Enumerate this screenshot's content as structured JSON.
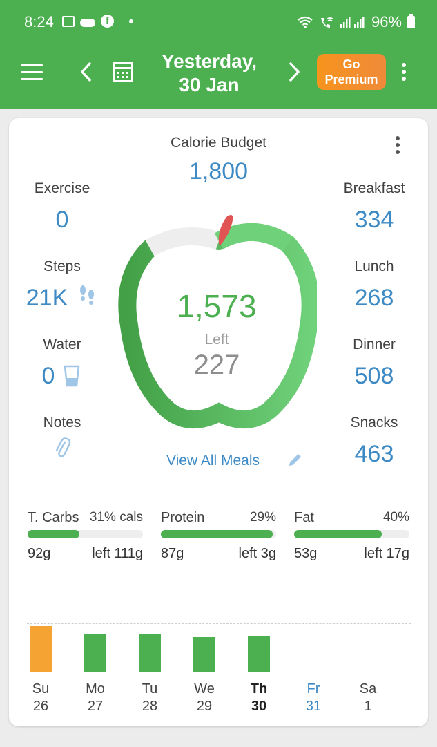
{
  "status_bar": {
    "time": "8:24",
    "battery": "96%"
  },
  "header": {
    "date_line1": "Yesterday,",
    "date_line2": "30 Jan",
    "premium_line1": "Go",
    "premium_line2": "Premium",
    "colors": {
      "bar": "#4caf50",
      "premium": "#f7941d"
    }
  },
  "summary": {
    "budget_label": "Calorie Budget",
    "budget_value": "1,800",
    "consumed": "1,573",
    "left_label": "Left",
    "left_value": "227",
    "view_all": "View All Meals",
    "left_stats": [
      {
        "label": "Exercise",
        "value": "0",
        "icon": ""
      },
      {
        "label": "Steps",
        "value": "21K",
        "icon": "footsteps-icon"
      },
      {
        "label": "Water",
        "value": "0",
        "icon": "water-glass-icon"
      },
      {
        "label": "Notes",
        "value": "",
        "icon": "paperclip-icon"
      }
    ],
    "meals": [
      {
        "label": "Breakfast",
        "value": "334"
      },
      {
        "label": "Lunch",
        "value": "268"
      },
      {
        "label": "Dinner",
        "value": "508"
      },
      {
        "label": "Snacks",
        "value": "463"
      }
    ]
  },
  "macros": [
    {
      "name": "T. Carbs",
      "pct": "31% cals",
      "grams": "92g",
      "left": "left 111g",
      "fill": 0.45
    },
    {
      "name": "Protein",
      "pct": "29%",
      "grams": "87g",
      "left": "left 3g",
      "fill": 0.97
    },
    {
      "name": "Fat",
      "pct": "40%",
      "grams": "53g",
      "left": "left 17g",
      "fill": 0.76
    }
  ],
  "week": [
    {
      "day": "Su",
      "date": "26",
      "value": 1.0,
      "color": "#f5a433"
    },
    {
      "day": "Mo",
      "date": "27",
      "value": 0.82,
      "color": "#4caf50"
    },
    {
      "day": "Tu",
      "date": "28",
      "value": 0.84,
      "color": "#4caf50"
    },
    {
      "day": "We",
      "date": "29",
      "value": 0.76,
      "color": "#4caf50"
    },
    {
      "day": "Th",
      "date": "30",
      "value": 0.78,
      "color": "#4caf50",
      "current": true
    },
    {
      "day": "Fr",
      "date": "31",
      "value": 0,
      "color": "#4caf50",
      "future": true
    },
    {
      "day": "Sa",
      "date": "1",
      "value": 0,
      "color": "#4caf50"
    }
  ]
}
